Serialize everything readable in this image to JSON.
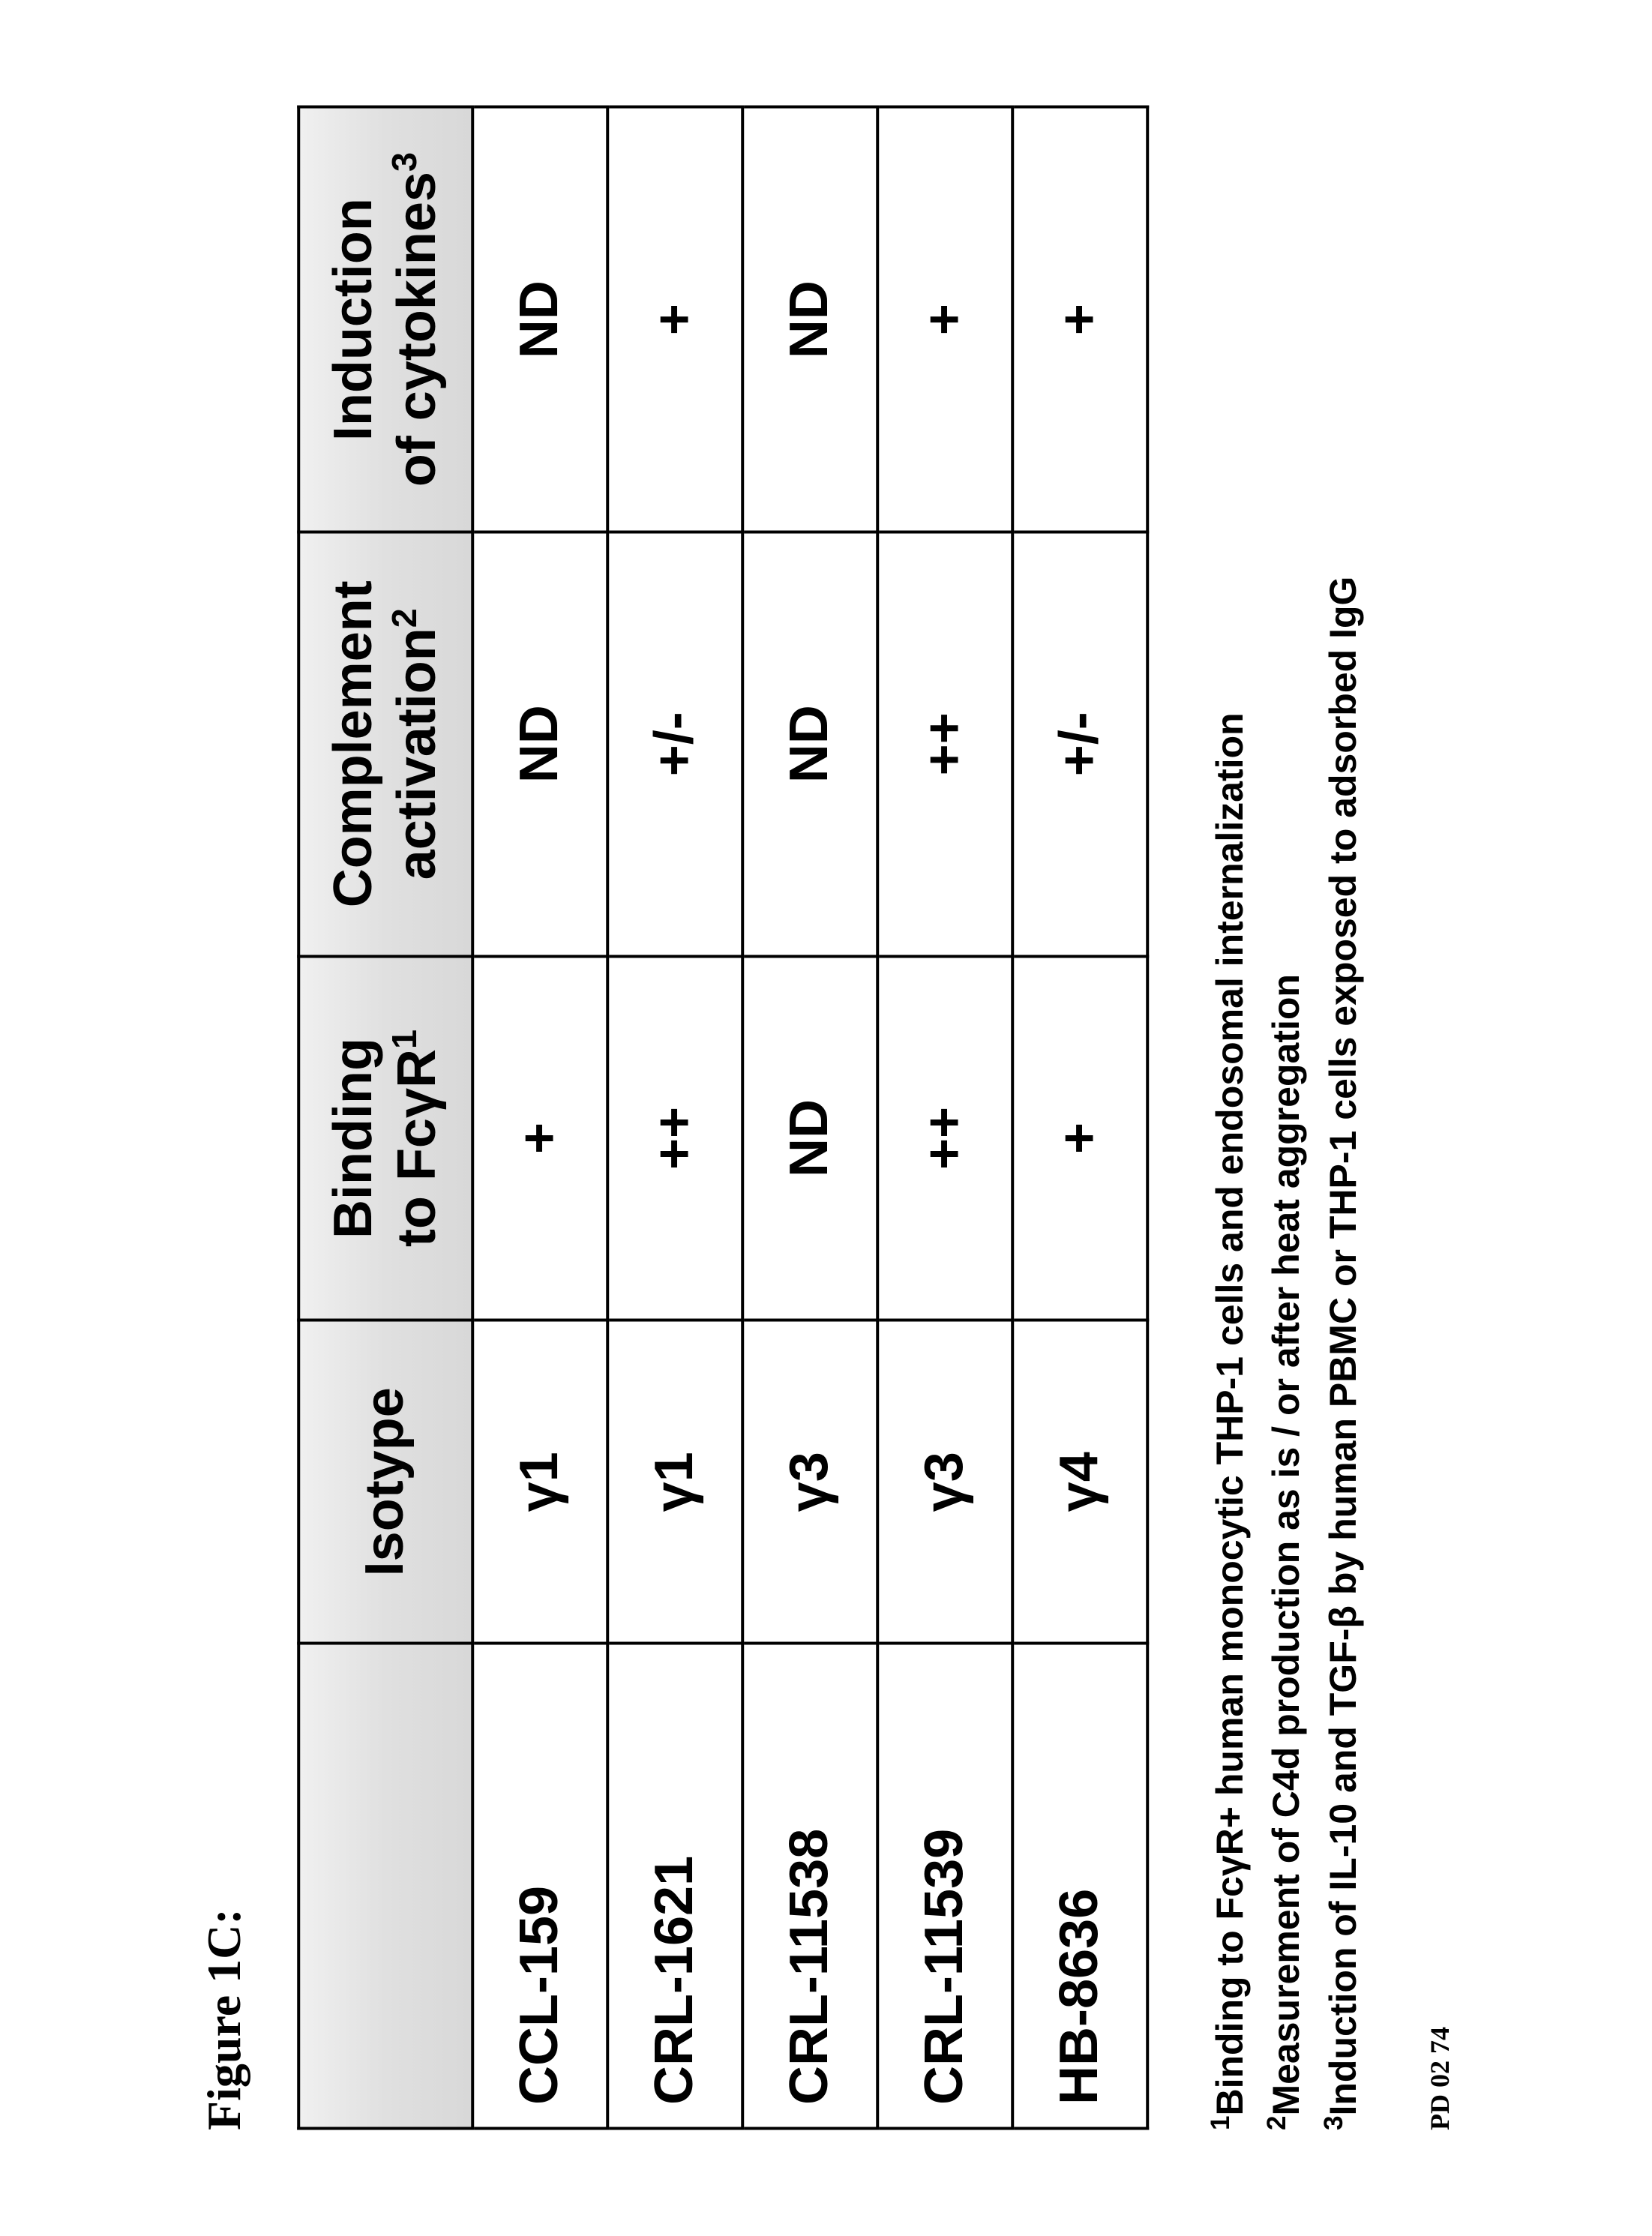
{
  "figure_title": "Figure 1C:",
  "headers": {
    "id": "",
    "isotype": "Isotype",
    "fcr_line1": "Binding",
    "fcr_line2_a": "to Fc",
    "fcr_line2_gamma": "γ",
    "fcr_line2_b": "R",
    "fcr_sup": "1",
    "comp_line1": "Complement",
    "comp_line2": "activation",
    "comp_sup": "2",
    "cyto_line1": "Induction",
    "cyto_line2": "of cytokines",
    "cyto_sup": "3"
  },
  "rows": [
    {
      "id": "CCL-159",
      "isotype_gamma": "γ",
      "isotype_n": "1",
      "fcr": "+",
      "comp": "ND",
      "cyto": "ND"
    },
    {
      "id": "CRL-1621",
      "isotype_gamma": "γ",
      "isotype_n": "1",
      "fcr": "++",
      "comp": "+/-",
      "cyto": "+"
    },
    {
      "id": "CRL-11538",
      "isotype_gamma": "γ",
      "isotype_n": "3",
      "fcr": "ND",
      "comp": "ND",
      "cyto": "ND"
    },
    {
      "id": "CRL-11539",
      "isotype_gamma": "γ",
      "isotype_n": "3",
      "fcr": "++",
      "comp": "++",
      "cyto": "+"
    },
    {
      "id": "HB-8636",
      "isotype_gamma": "γ",
      "isotype_n": "4",
      "fcr": "+",
      "comp": "+/-",
      "cyto": "+"
    }
  ],
  "footnotes": {
    "f1_sup": "1",
    "f1_a": "Binding to Fc",
    "f1_gamma": "γ",
    "f1_b": "R+ human monocytic THP-1 cells and endosomal internalization",
    "f2_sup": "2",
    "f2": "Measurement of C4d production as is / or after heat aggregation",
    "f3_sup": "3",
    "f3_a": "Induction of IL-10 and TGF-",
    "f3_beta": "β",
    "f3_b": " by human PBMC or THP-1 cells exposed to adsorbed IgG"
  },
  "page_code": "PD 02 74"
}
